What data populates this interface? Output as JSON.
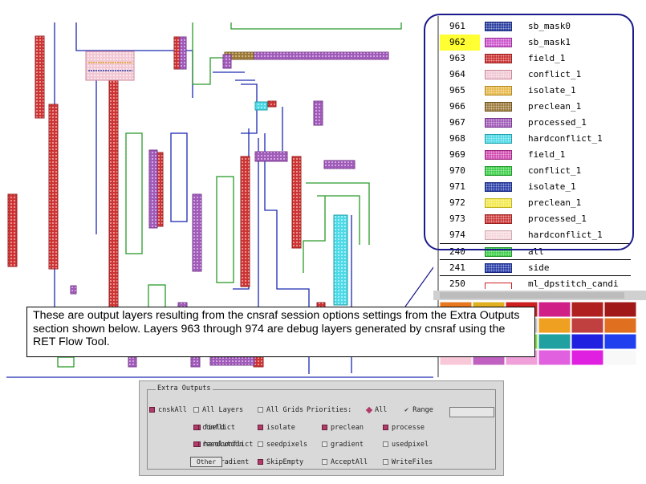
{
  "layers": [
    {
      "num": "961",
      "name": "sb_mask0",
      "fill": "#2a3f9f",
      "edge": "#1a2a80",
      "hl": false
    },
    {
      "num": "962",
      "name": "sb_mask1",
      "fill": "#cc55cc",
      "edge": "#993399",
      "hl": true
    },
    {
      "num": "963",
      "name": "field_1",
      "fill": "#cc3333",
      "edge": "#992222",
      "hl": false
    },
    {
      "num": "964",
      "name": "conflict_1",
      "fill": "#f0c8d4",
      "edge": "#cc8899",
      "hl": false
    },
    {
      "num": "965",
      "name": "isolate_1",
      "fill": "#e8b94a",
      "edge": "#b08a20",
      "hl": false
    },
    {
      "num": "966",
      "name": "preclean_1",
      "fill": "#9c7a3c",
      "edge": "#705420",
      "hl": false
    },
    {
      "num": "967",
      "name": "processed_1",
      "fill": "#a05ab8",
      "edge": "#7a3a90",
      "hl": false
    },
    {
      "num": "968",
      "name": "hardconflict_1",
      "fill": "#4ed9e6",
      "edge": "#20a0aa",
      "hl": false
    },
    {
      "num": "969",
      "name": "field_1",
      "fill": "#d04ab0",
      "edge": "#9c2a80",
      "hl": false
    },
    {
      "num": "970",
      "name": "conflict_1",
      "fill": "#3ecf4a",
      "edge": "#20962a",
      "hl": false
    },
    {
      "num": "971",
      "name": "isolate_1",
      "fill": "#2a3fa8",
      "edge": "#1a2a80",
      "hl": false
    },
    {
      "num": "972",
      "name": "preclean_1",
      "fill": "#f2e84a",
      "edge": "#c0b420",
      "hl": false
    },
    {
      "num": "973",
      "name": "processed_1",
      "fill": "#cc3a3a",
      "edge": "#992222",
      "hl": false
    },
    {
      "num": "974",
      "name": "hardconflict_1",
      "fill": "#f6d6dc",
      "edge": "#ccaab0",
      "hl": false
    },
    {
      "num": "240",
      "name": "all",
      "fill": "#3ecf4a",
      "edge": "#20962a",
      "hl": false
    },
    {
      "num": "241",
      "name": "side",
      "fill": "#2a3fa8",
      "edge": "#1a2a80",
      "hl": false
    },
    {
      "num": "250",
      "name": "ml_dpstitch_candi",
      "fill": "#ffffff",
      "edge": "#cc2222",
      "hl": false
    }
  ],
  "callout": {
    "text": "These are output layers resulting from the cnsraf session options settings from the Extra Outputs section shown below. Layers 963 through 974 are debug layers generated by cnsraf using the RET Flow Tool."
  },
  "extra_outputs": {
    "title": "Extra Outputs",
    "row1": [
      {
        "label": "cnskAll",
        "on": true
      },
      {
        "label": "All Layers",
        "on": false
      },
      {
        "label": "All Grids",
        "on": false
      },
      {
        "label": "Priorities:",
        "on": null
      },
      {
        "label": "All",
        "radio": true
      },
      {
        "label": "Range",
        "check": true
      }
    ],
    "row2": [
      {
        "label": "field",
        "on": true
      },
      {
        "label": "conflict",
        "on": true
      },
      {
        "label": "isolate",
        "on": true
      },
      {
        "label": "preclean",
        "on": true
      },
      {
        "label": "processe",
        "on": true
      }
    ],
    "row3": [
      {
        "label": "hardconflict",
        "on": true
      },
      {
        "label": "resolution",
        "on": true
      },
      {
        "label": "seedpixels",
        "on": false
      },
      {
        "label": "gradient",
        "on": false
      },
      {
        "label": "usedpixel",
        "on": false
      }
    ],
    "row4": [
      {
        "label": "medgradient",
        "on": false
      },
      {
        "label": "Other",
        "menu": true
      },
      {
        "label": "SkipEmpty",
        "on": true
      },
      {
        "label": "AcceptAll",
        "on": false
      },
      {
        "label": "WriteFiles",
        "on": false
      }
    ]
  },
  "palette": [
    "#e87820",
    "#e0b020",
    "#cc2020",
    "#d02088",
    "#b02020",
    "#a01818",
    "#f05010",
    "#f0c020",
    "#c8c8c8",
    "#f0a020",
    "#c04040",
    "#e07020",
    "#20c8c8",
    "#40c040",
    "#80e040",
    "#20a0a0",
    "#2020e0",
    "#2040f0",
    "#f8c8d8",
    "#c060c0",
    "#f0a0d8",
    "#e060e0",
    "#e020e0",
    "#f8f8f8"
  ]
}
